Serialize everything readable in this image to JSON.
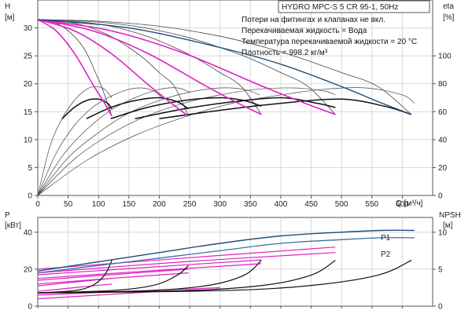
{
  "title": "HYDRO MPC-S 5 CR 95-1, 50Hz",
  "notes": [
    "Потери на фитингах и клапанах не вкл.",
    "Перекачиваемая жидкость = Вода",
    "Температура перекачиваемой жидкости = 20 °C",
    "Плотность = 998.2 кг/м³"
  ],
  "colors": {
    "axis": "#555555",
    "grid": "#d8d8d8",
    "black": "#111111",
    "thin": "#444444",
    "magenta": "#e020c0",
    "blue": "#1f4e79",
    "blue2": "#3a6ea5"
  },
  "chart_data": [
    {
      "type": "line",
      "name": "top",
      "xlabel": "Q [м³/ч]",
      "ylabel_left": "H",
      "ylabel_left_unit": "[м]",
      "ylabel_right": "eta",
      "ylabel_right_unit": "[%]",
      "xlim": [
        0,
        650
      ],
      "ylim_left": [
        0,
        35
      ],
      "ylim_right": [
        0,
        140
      ],
      "x_ticks": [
        0,
        50,
        100,
        150,
        200,
        250,
        300,
        350,
        400,
        450,
        500,
        550,
        600
      ],
      "y_ticks_left": [
        0,
        5,
        10,
        15,
        20,
        25,
        30
      ],
      "y_ticks_right": [
        0,
        20,
        40,
        60,
        80,
        100
      ],
      "series": [
        {
          "role": "eta_thin",
          "x": [
            0,
            20,
            40,
            60,
            80,
            95,
            110,
            122
          ],
          "y": [
            0,
            35,
            55,
            68,
            76,
            78,
            76,
            70
          ]
        },
        {
          "role": "eta_thin",
          "x": [
            0,
            30,
            60,
            90,
            120,
            150,
            170,
            190,
            205
          ],
          "y": [
            0,
            30,
            50,
            63,
            71,
            76,
            77,
            75,
            70
          ]
        },
        {
          "role": "eta_thin",
          "x": [
            0,
            40,
            80,
            120,
            160,
            200,
            230,
            250
          ],
          "y": [
            0,
            28,
            47,
            61,
            70,
            76,
            77,
            74
          ]
        },
        {
          "role": "eta_thin",
          "x": [
            0,
            50,
            100,
            150,
            200,
            250,
            300,
            340,
            365
          ],
          "y": [
            0,
            27,
            45,
            59,
            68,
            74,
            77,
            76,
            72
          ]
        },
        {
          "role": "eta_thin",
          "x": [
            0,
            60,
            120,
            180,
            240,
            300,
            360,
            420,
            470,
            490
          ],
          "y": [
            0,
            26,
            44,
            57,
            66,
            72,
            76,
            77,
            75,
            72
          ]
        },
        {
          "role": "eta_thin",
          "x": [
            0,
            80,
            160,
            240,
            320,
            400,
            470,
            540,
            600,
            620
          ],
          "y": [
            0,
            25,
            43,
            56,
            66,
            72,
            76,
            77,
            72,
            66
          ]
        },
        {
          "role": "eta_main",
          "x": [
            40,
            60,
            80,
            100,
            115,
            122
          ],
          "y": [
            55,
            63,
            68,
            69,
            66,
            62
          ]
        },
        {
          "role": "eta_main",
          "x": [
            80,
            120,
            160,
            200,
            230,
            248
          ],
          "y": [
            55,
            63,
            68,
            70,
            67,
            62
          ]
        },
        {
          "role": "eta_main",
          "x": [
            120,
            180,
            240,
            300,
            340,
            368
          ],
          "y": [
            55,
            63,
            68,
            70,
            68,
            64
          ]
        },
        {
          "role": "eta_main",
          "x": [
            160,
            240,
            320,
            400,
            460,
            490
          ],
          "y": [
            55,
            62,
            67,
            70,
            66,
            63
          ]
        },
        {
          "role": "eta_main",
          "x": [
            200,
            300,
            400,
            500,
            570,
            615
          ],
          "y": [
            55,
            61,
            66,
            69,
            64,
            58
          ]
        },
        {
          "role": "head_mag",
          "x": [
            0,
            30,
            60,
            90,
            110,
            122
          ],
          "y": [
            31.5,
            29.5,
            25.5,
            20,
            16.5,
            14.2
          ]
        },
        {
          "role": "head_mag",
          "x": [
            0,
            60,
            120,
            180,
            220,
            248
          ],
          "y": [
            31.5,
            29.5,
            25.5,
            20,
            16.5,
            14.2
          ]
        },
        {
          "role": "head_mag",
          "x": [
            0,
            90,
            180,
            270,
            330,
            368
          ],
          "y": [
            31.5,
            29.5,
            25.5,
            20,
            16.5,
            14.5
          ]
        },
        {
          "role": "head_mag",
          "x": [
            0,
            120,
            240,
            360,
            440,
            490
          ],
          "y": [
            31.5,
            29.5,
            25.5,
            20,
            16.5,
            14.5
          ]
        },
        {
          "role": "head_blue",
          "x": [
            0,
            150,
            300,
            400,
            500,
            560,
            615
          ],
          "y": [
            31.5,
            30,
            26.5,
            23.5,
            19.5,
            16.8,
            14.5
          ]
        },
        {
          "role": "head_black",
          "x": [
            0,
            20,
            40,
            60,
            75,
            85,
            95,
            105,
            122
          ],
          "y": [
            31.5,
            31.2,
            30.3,
            28.5,
            26.5,
            24.5,
            22,
            19.5,
            14.2
          ]
        },
        {
          "role": "head_black",
          "x": [
            0,
            40,
            80,
            120,
            150,
            175,
            200,
            225,
            248
          ],
          "y": [
            31.5,
            31.2,
            30.3,
            28.5,
            26.5,
            24.5,
            22,
            19.5,
            14.2
          ]
        },
        {
          "role": "head_black",
          "x": [
            0,
            60,
            120,
            180,
            225,
            262,
            300,
            335,
            368
          ],
          "y": [
            31.5,
            31.2,
            30.3,
            28.5,
            26.5,
            24.5,
            22,
            19.5,
            14.5
          ]
        },
        {
          "role": "head_black",
          "x": [
            0,
            80,
            160,
            240,
            300,
            350,
            400,
            445,
            490
          ],
          "y": [
            31.5,
            31.2,
            30.3,
            28.5,
            26.5,
            24.5,
            22,
            19.5,
            14.5
          ]
        },
        {
          "role": "head_black",
          "x": [
            0,
            100,
            200,
            300,
            375,
            435,
            500,
            560,
            615
          ],
          "y": [
            31.5,
            31.2,
            30.3,
            28.5,
            26.5,
            24.5,
            22,
            19.5,
            14.5
          ]
        }
      ]
    },
    {
      "type": "line",
      "name": "bottom",
      "ylabel_left": "P",
      "ylabel_left_unit": "[кВт]",
      "ylabel_right": "NPSH",
      "ylabel_right_unit": "[м]",
      "xlim": [
        0,
        650
      ],
      "ylim_left": [
        0,
        48
      ],
      "ylim_right": [
        0,
        12
      ],
      "y_ticks_left": [
        0,
        20,
        40
      ],
      "y_ticks_right": [
        0,
        5,
        10
      ],
      "legend": [
        "P1",
        "P2"
      ],
      "series": [
        {
          "role": "P1",
          "x": [
            0,
            100,
            200,
            300,
            400,
            500,
            565,
            620
          ],
          "y": [
            19,
            24,
            29,
            34,
            38,
            40,
            41,
            41
          ]
        },
        {
          "role": "P2",
          "x": [
            0,
            100,
            200,
            300,
            400,
            500,
            565,
            620
          ],
          "y": [
            18,
            22,
            26,
            30,
            34,
            36,
            37,
            37
          ]
        },
        {
          "role": "power_mag",
          "x": [
            0,
            60,
            122
          ],
          "y": [
            8,
            10,
            12
          ]
        },
        {
          "role": "power_mag",
          "x": [
            0,
            60,
            122
          ],
          "y": [
            11,
            13,
            15
          ]
        },
        {
          "role": "power_mag",
          "x": [
            0,
            120,
            248
          ],
          "y": [
            12,
            15,
            18
          ]
        },
        {
          "role": "power_mag",
          "x": [
            0,
            120,
            248
          ],
          "y": [
            14,
            17,
            20
          ]
        },
        {
          "role": "power_mag",
          "x": [
            0,
            180,
            368
          ],
          "y": [
            15,
            19,
            23
          ]
        },
        {
          "role": "power_mag",
          "x": [
            0,
            180,
            368
          ],
          "y": [
            17,
            21,
            25
          ]
        },
        {
          "role": "power_mag",
          "x": [
            0,
            240,
            490
          ],
          "y": [
            18,
            24,
            29
          ]
        },
        {
          "role": "power_mag",
          "x": [
            0,
            240,
            490
          ],
          "y": [
            20,
            26,
            32
          ]
        },
        {
          "role": "power_mag",
          "x": [
            0,
            150,
            300
          ],
          "y": [
            6,
            8,
            10
          ]
        },
        {
          "role": "power_mag",
          "x": [
            0,
            100,
            200
          ],
          "y": [
            4,
            6,
            8
          ]
        },
        {
          "role": "npsh_black",
          "x": [
            0,
            60,
            90,
            110,
            122
          ],
          "y": [
            1.8,
            2.1,
            2.8,
            4.2,
            6.2
          ]
        },
        {
          "role": "npsh_black",
          "x": [
            0,
            120,
            190,
            230,
            248
          ],
          "y": [
            1.8,
            2.1,
            2.8,
            4.2,
            5.5
          ]
        },
        {
          "role": "npsh_black",
          "x": [
            0,
            180,
            280,
            340,
            368
          ],
          "y": [
            1.8,
            2.1,
            2.8,
            4.2,
            6.2
          ]
        },
        {
          "role": "npsh_black",
          "x": [
            0,
            240,
            370,
            450,
            490
          ],
          "y": [
            1.8,
            2.1,
            2.8,
            4.2,
            6.2
          ]
        },
        {
          "role": "npsh_black",
          "x": [
            0,
            300,
            450,
            560,
            615
          ],
          "y": [
            1.8,
            2.1,
            2.8,
            4.2,
            6.2
          ]
        }
      ]
    }
  ]
}
